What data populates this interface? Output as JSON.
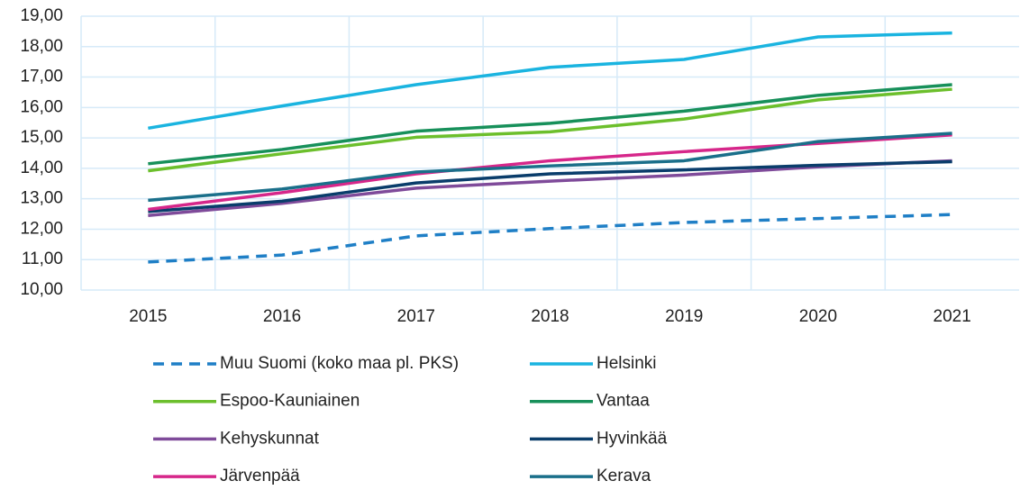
{
  "chart_data": {
    "type": "line",
    "categories": [
      "2015",
      "2016",
      "2017",
      "2018",
      "2019",
      "2020",
      "2021"
    ],
    "series": [
      {
        "name": "Muu Suomi (koko maa pl. PKS)",
        "color": "#1f7fc6",
        "dashed": true,
        "values": [
          10.92,
          11.15,
          11.78,
          12.02,
          12.22,
          12.35,
          12.48
        ]
      },
      {
        "name": "Helsinki",
        "color": "#1ab4e0",
        "values": [
          15.32,
          16.05,
          16.75,
          17.32,
          17.58,
          18.32,
          18.45
        ]
      },
      {
        "name": "Espoo-Kauniainen",
        "color": "#6cbf2c",
        "values": [
          13.92,
          14.48,
          15.02,
          15.2,
          15.62,
          16.25,
          16.6
        ]
      },
      {
        "name": "Vantaa",
        "color": "#17905a",
        "values": [
          14.15,
          14.62,
          15.22,
          15.48,
          15.88,
          16.4,
          16.75
        ]
      },
      {
        "name": "Kehyskunnat",
        "color": "#7f4b9a",
        "values": [
          12.45,
          12.85,
          13.35,
          13.58,
          13.78,
          14.05,
          14.25
        ]
      },
      {
        "name": "Hyvinkää",
        "color": "#0a3d6b",
        "values": [
          12.58,
          12.92,
          13.52,
          13.82,
          13.95,
          14.1,
          14.22
        ]
      },
      {
        "name": "Järvenpää",
        "color": "#d6278a",
        "values": [
          12.65,
          13.2,
          13.82,
          14.25,
          14.55,
          14.82,
          15.1
        ]
      },
      {
        "name": "Kerava",
        "color": "#1a6f8a",
        "values": [
          12.95,
          13.32,
          13.88,
          14.08,
          14.25,
          14.88,
          15.15
        ]
      }
    ],
    "ylim": [
      10,
      19
    ],
    "yticks": [
      {
        "value": 10,
        "label": "10,00"
      },
      {
        "value": 11,
        "label": "11,00"
      },
      {
        "value": 12,
        "label": "12,00"
      },
      {
        "value": 13,
        "label": "13,00"
      },
      {
        "value": 14,
        "label": "14,00"
      },
      {
        "value": 15,
        "label": "15,00"
      },
      {
        "value": 16,
        "label": "16,00"
      },
      {
        "value": 17,
        "label": "17,00"
      },
      {
        "value": 18,
        "label": "18,00"
      },
      {
        "value": 19,
        "label": "19,00"
      }
    ],
    "grid": true
  }
}
